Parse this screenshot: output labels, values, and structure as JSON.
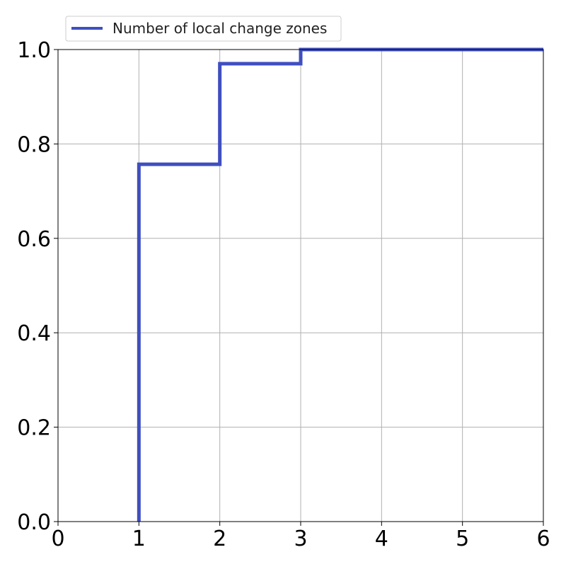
{
  "chart_data": {
    "type": "line",
    "step": "post",
    "title": "",
    "xlabel": "",
    "ylabel": "",
    "xlim": [
      0,
      6
    ],
    "ylim": [
      0.0,
      1.0
    ],
    "xticks": [
      0,
      1,
      2,
      3,
      4,
      5,
      6
    ],
    "xtick_labels": [
      "0",
      "1",
      "2",
      "3",
      "4",
      "5",
      "6"
    ],
    "yticks": [
      0.0,
      0.2,
      0.4,
      0.6,
      0.8,
      1.0
    ],
    "ytick_labels": [
      "0.0",
      "0.2",
      "0.4",
      "0.6",
      "0.8",
      "1.0"
    ],
    "grid": true,
    "legend_position": "top-left (above plot)",
    "series": [
      {
        "name": "Number of local change zones",
        "color": "#3f4fc0",
        "x": [
          1,
          1,
          2,
          2,
          3,
          3,
          6
        ],
        "y": [
          0.0,
          0.757,
          0.757,
          0.97,
          0.97,
          1.0,
          1.0
        ]
      }
    ]
  }
}
